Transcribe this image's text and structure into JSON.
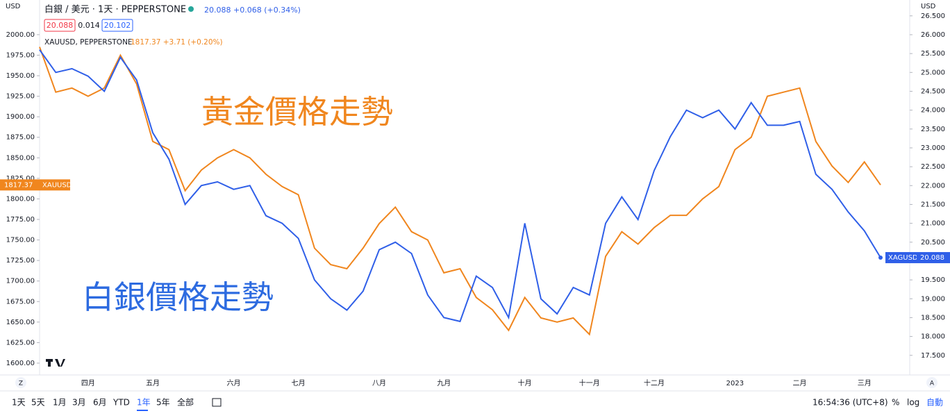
{
  "header": {
    "symbol": "白銀 / 美元 · 1天 · PEPPERSTONE",
    "quote": "20.088 +0.068 (+0.34%)",
    "bid": "20.088",
    "spread": "0.014",
    "ask": "20.102",
    "overlay_symbol": "XAUUSD, PEPPERSTONE",
    "overlay_quote": "1817.37 +3.71 (+0.20%)"
  },
  "axis_currency": "USD",
  "price_tags": {
    "gold_price": "1817.37",
    "gold_symbol": "XAUUSD",
    "silver_symbol": "XAGUSD",
    "silver_price": "20.088"
  },
  "scale_buttons": {
    "left": "Z",
    "right": "A"
  },
  "toolbar": {
    "ranges": [
      "1天",
      "5天",
      "1月",
      "3月",
      "6月",
      "YTD",
      "1年",
      "5年",
      "全部"
    ],
    "active": "1年",
    "clock": "16:54:36 (UTC+8)",
    "percent": "%",
    "log": "log",
    "auto": "自動"
  },
  "chart_data": {
    "type": "line",
    "annotations": [
      "黃金價格走勢",
      "白銀價格走勢"
    ],
    "categories": [
      null,
      null,
      null,
      "四月",
      null,
      null,
      null,
      "五月",
      null,
      null,
      null,
      null,
      "六月",
      null,
      null,
      null,
      "七月",
      null,
      null,
      null,
      null,
      "八月",
      null,
      null,
      null,
      "九月",
      null,
      null,
      null,
      null,
      "十月",
      null,
      null,
      null,
      "十一月",
      null,
      null,
      null,
      "十二月",
      null,
      null,
      null,
      null,
      "2023",
      null,
      null,
      null,
      "二月",
      null,
      null,
      null,
      "三月",
      null
    ],
    "series": [
      {
        "name": "XAUUSD",
        "color": "#f0861e",
        "axis": "y",
        "values": [
          1985,
          1930,
          1935,
          1925,
          1935,
          1975,
          1940,
          1870,
          1860,
          1810,
          1835,
          1850,
          1860,
          1850,
          1830,
          1815,
          1805,
          1740,
          1720,
          1715,
          1740,
          1770,
          1790,
          1760,
          1750,
          1710,
          1715,
          1680,
          1665,
          1640,
          1680,
          1655,
          1650,
          1655,
          1635,
          1730,
          1760,
          1745,
          1765,
          1780,
          1780,
          1800,
          1815,
          1860,
          1875,
          1925,
          1930,
          1935,
          1870,
          1840,
          1820,
          1845,
          1817
        ]
      },
      {
        "name": "XAGUSD",
        "color": "#2f5fe8",
        "axis": "y2",
        "values": [
          25.6,
          25.0,
          25.1,
          24.9,
          24.5,
          25.4,
          24.8,
          23.4,
          22.7,
          21.5,
          22.0,
          22.1,
          21.9,
          22.0,
          21.2,
          21.0,
          20.6,
          19.5,
          19.0,
          18.7,
          19.2,
          20.3,
          20.5,
          20.2,
          19.1,
          18.5,
          18.4,
          19.6,
          19.3,
          18.5,
          21.0,
          19.0,
          18.6,
          19.3,
          19.1,
          21.0,
          21.7,
          21.1,
          22.4,
          23.3,
          24.0,
          23.8,
          24.0,
          23.5,
          24.2,
          23.6,
          23.6,
          23.7,
          22.3,
          21.9,
          21.3,
          20.8,
          20.09
        ]
      }
    ],
    "ylim": [
      1585.6,
      2042.2
    ],
    "yticks": [
      {
        "value": 1600,
        "label": "1600.00"
      },
      {
        "value": 1625,
        "label": "1625.00"
      },
      {
        "value": 1650,
        "label": "1650.00"
      },
      {
        "value": 1675,
        "label": "1675.00"
      },
      {
        "value": 1700,
        "label": "1700.00"
      },
      {
        "value": 1725,
        "label": "1725.00"
      },
      {
        "value": 1750,
        "label": "1750.00"
      },
      {
        "value": 1775,
        "label": "1775.00"
      },
      {
        "value": 1800,
        "label": "1800.00"
      },
      {
        "value": 1825,
        "label": "1825.00"
      },
      {
        "value": 1850,
        "label": "1850.00"
      },
      {
        "value": 1875,
        "label": "1875.00"
      },
      {
        "value": 1900,
        "label": "1900.00"
      },
      {
        "value": 1925,
        "label": "1925.00"
      },
      {
        "value": 1950,
        "label": "1950.00"
      },
      {
        "value": 1975,
        "label": "1975.00"
      },
      {
        "value": 2000,
        "label": "2000.00"
      }
    ],
    "y2lim": [
      16.98,
      26.92
    ],
    "y2ticks": [
      {
        "value": 17.5,
        "label": "17.500"
      },
      {
        "value": 18,
        "label": "18.000"
      },
      {
        "value": 18.5,
        "label": "18.500"
      },
      {
        "value": 19,
        "label": "19.000"
      },
      {
        "value": 19.5,
        "label": "19.500"
      },
      {
        "value": 20,
        "label": "20.000"
      },
      {
        "value": 20.5,
        "label": "20.500"
      },
      {
        "value": 21,
        "label": "21.000"
      },
      {
        "value": 21.5,
        "label": "21.500"
      },
      {
        "value": 22,
        "label": "22.000"
      },
      {
        "value": 22.5,
        "label": "22.500"
      },
      {
        "value": 23,
        "label": "23.000"
      },
      {
        "value": 23.5,
        "label": "23.500"
      },
      {
        "value": 24,
        "label": "24.000"
      },
      {
        "value": 24.5,
        "label": "24.500"
      },
      {
        "value": 25,
        "label": "25.000"
      },
      {
        "value": 25.5,
        "label": "25.500"
      },
      {
        "value": 26,
        "label": "26.000"
      },
      {
        "value": 26.5,
        "label": "26.500"
      }
    ],
    "grid": false
  }
}
